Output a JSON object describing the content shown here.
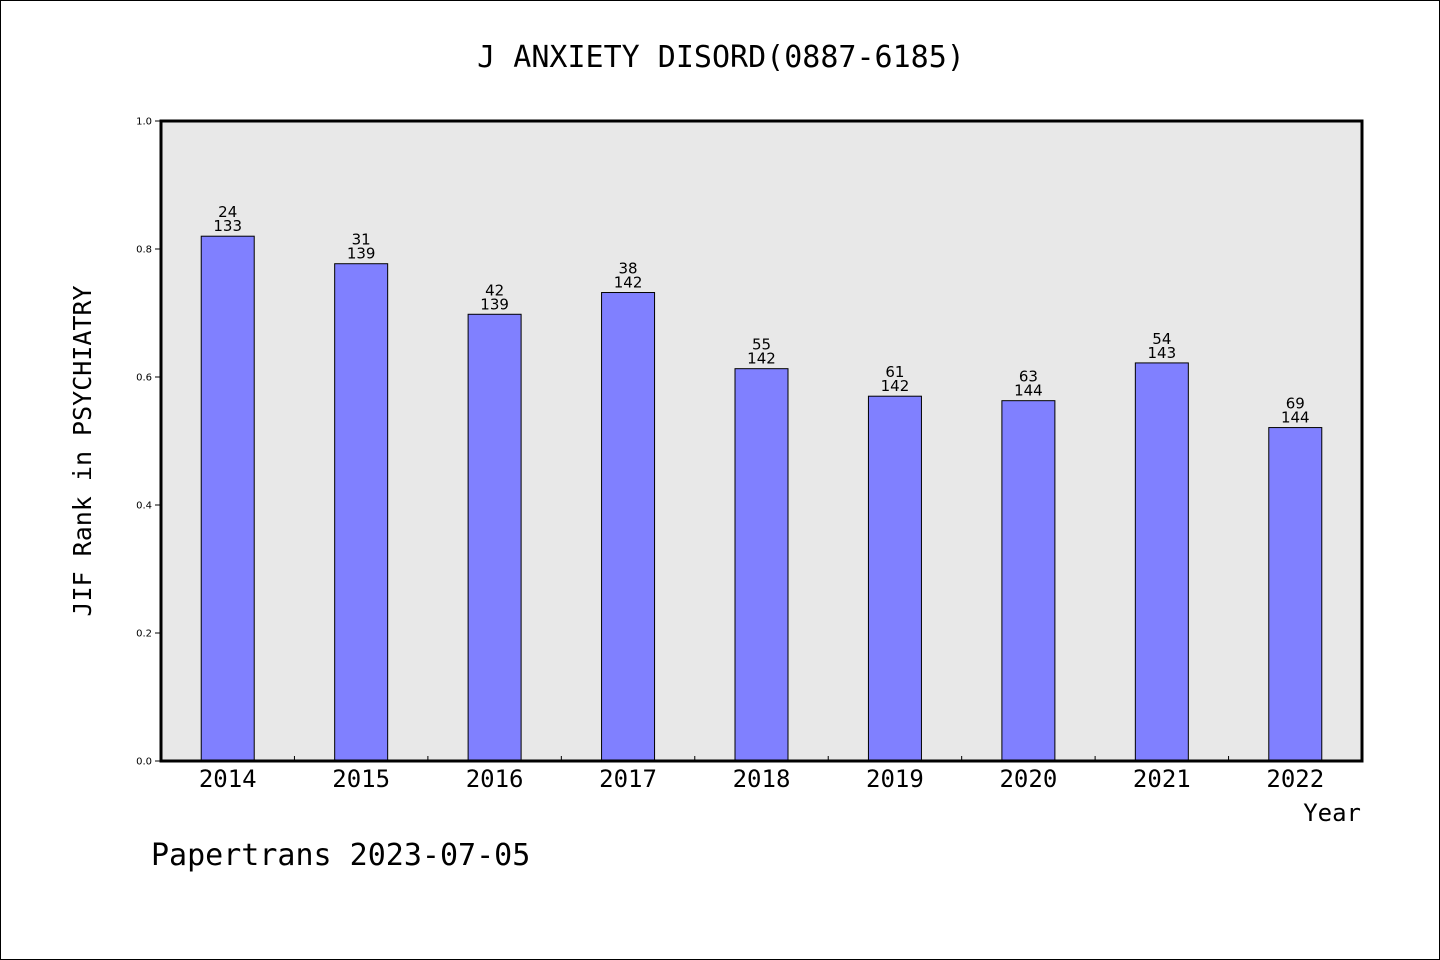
{
  "chart_data": {
    "type": "bar",
    "title": "J ANXIETY DISORD(0887-6185)",
    "xlabel": "Year",
    "ylabel": "JIF Rank in PSYCHIATRY",
    "ylim": [
      0,
      1.0
    ],
    "yticks": [
      "0.0",
      "0.2",
      "0.4",
      "0.6",
      "0.8",
      "1.0"
    ],
    "grid": false,
    "categories": [
      "2014",
      "2015",
      "2016",
      "2017",
      "2018",
      "2019",
      "2020",
      "2021",
      "2022"
    ],
    "values": [
      0.82,
      0.777,
      0.698,
      0.732,
      0.613,
      0.57,
      0.563,
      0.622,
      0.521
    ],
    "rank_labels": [
      "24",
      "31",
      "42",
      "38",
      "55",
      "61",
      "63",
      "54",
      "69"
    ],
    "total_labels": [
      "133",
      "139",
      "139",
      "142",
      "142",
      "142",
      "144",
      "143",
      "144"
    ],
    "colors": {
      "bar": "#8080ff",
      "plot_bg": "#e8e8e8"
    }
  },
  "footer": "Papertrans 2023-07-05"
}
